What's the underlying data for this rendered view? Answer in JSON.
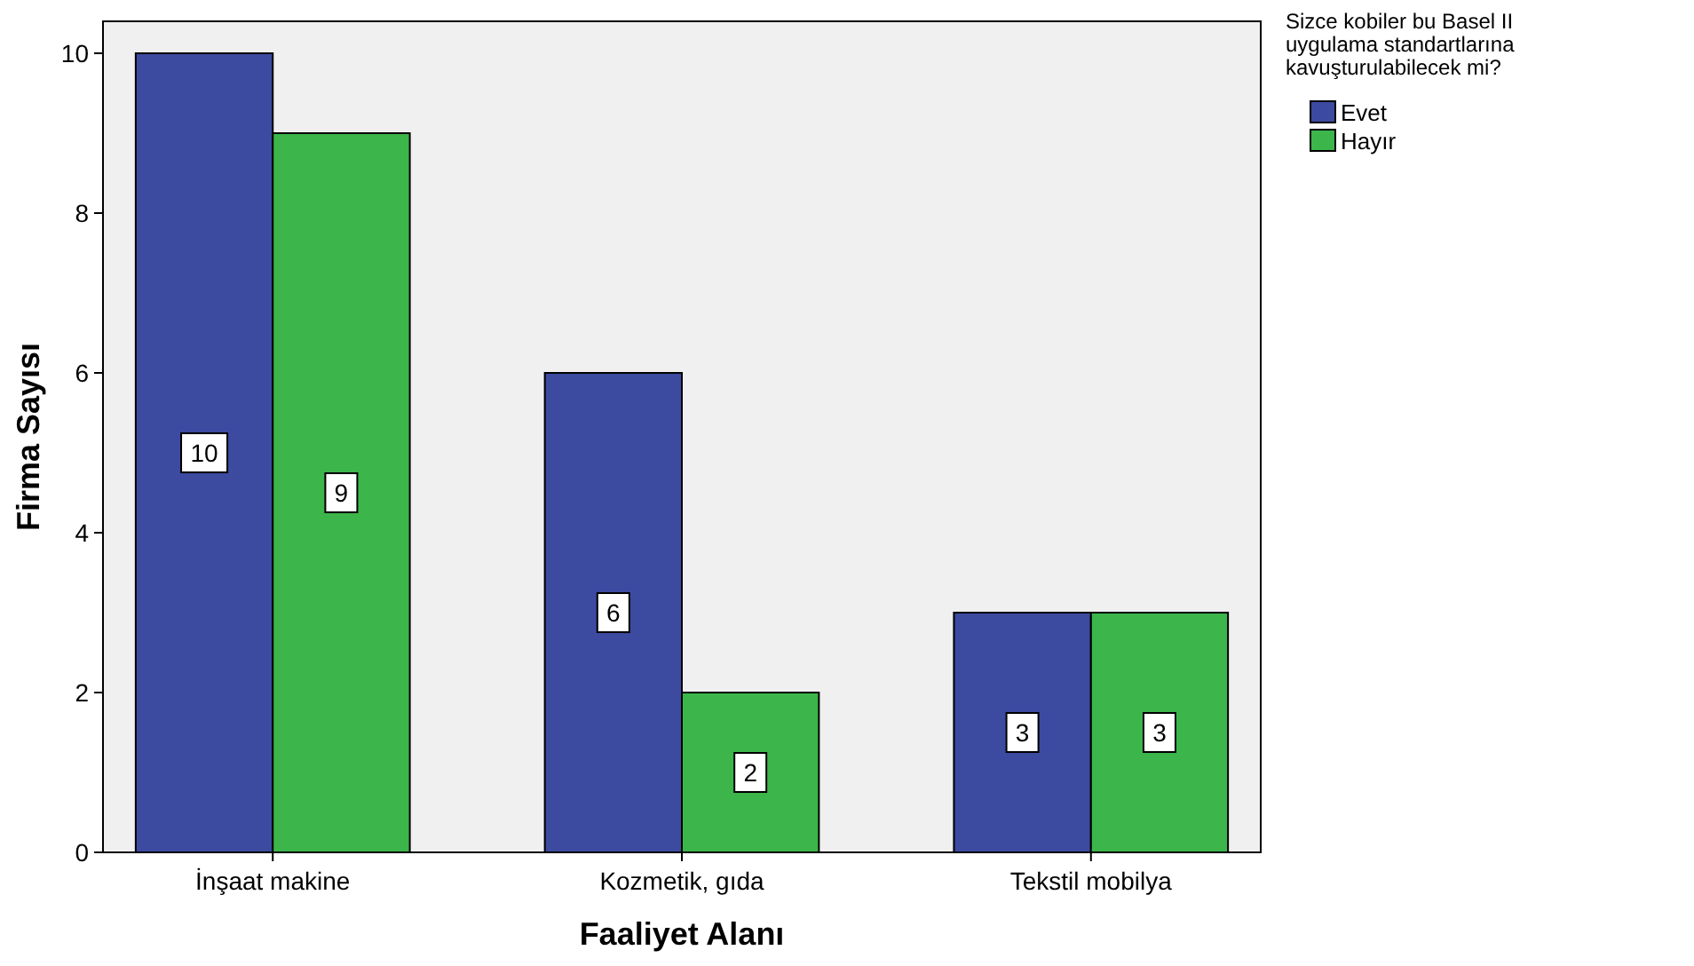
{
  "chart_data": {
    "type": "bar",
    "xlabel": "Faaliyet Alanı",
    "ylabel": "Firma Sayısı",
    "legend_title": "Sizce kobiler bu Basel II uygulama standartlarına kavuşturulabilecek mi?",
    "categories": [
      "İnşaat makine",
      "Kozmetik, gıda",
      "Tekstil mobilya"
    ],
    "series": [
      {
        "name": "Evet",
        "color": "#3c4aa0",
        "values": [
          10,
          6,
          3
        ]
      },
      {
        "name": "Hayır",
        "color": "#3cb54a",
        "values": [
          9,
          2,
          3
        ]
      }
    ],
    "ylim": [
      0,
      10.4
    ],
    "yticks": [
      0,
      2,
      4,
      6,
      8,
      10
    ],
    "grid": false,
    "legend": "top right",
    "data_labels": true
  }
}
